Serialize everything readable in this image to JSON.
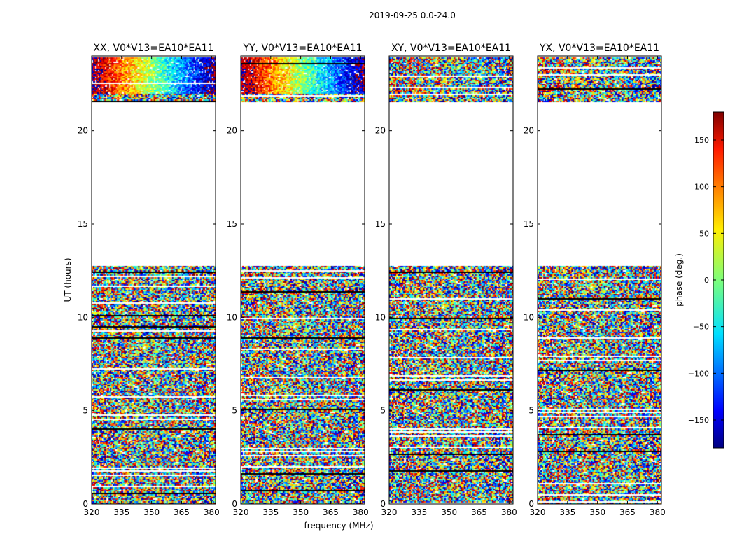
{
  "figure": {
    "suptitle": "2019-09-25 0.0-24.0"
  },
  "chart_data": {
    "type": "heatmap",
    "suptitle": "2019-09-25 0.0-24.0",
    "xlabel": "frequency (MHz)",
    "ylabel": "UT (hours)",
    "xlim": [
      320,
      382
    ],
    "ylim": [
      0,
      24
    ],
    "x_ticks": [
      "320",
      "335",
      "350",
      "365",
      "380"
    ],
    "y_ticks": [
      "0",
      "5",
      "10",
      "15",
      "20"
    ],
    "x_tick_values": [
      320,
      335,
      350,
      365,
      380
    ],
    "y_tick_values": [
      0,
      5,
      10,
      15,
      20
    ],
    "panels": [
      {
        "title": "XX, V0*V13=EA10*EA11",
        "pol": "XX"
      },
      {
        "title": "YY, V0*V13=EA10*EA11",
        "pol": "YY"
      },
      {
        "title": "XY, V0*V13=EA10*EA11",
        "pol": "XY"
      },
      {
        "title": "YX, V0*V13=EA10*EA11",
        "pol": "YX"
      }
    ],
    "gap_ut_hours": [
      12.8,
      21.6
    ],
    "colorbar": {
      "label": "phase (deg.)",
      "range": [
        -180,
        180
      ],
      "ticks": [
        "150",
        "100",
        "50",
        "0",
        "−50",
        "−100",
        "−150"
      ],
      "tick_values": [
        150,
        100,
        50,
        0,
        -50,
        -100,
        -150
      ],
      "colormap": "jet"
    }
  }
}
